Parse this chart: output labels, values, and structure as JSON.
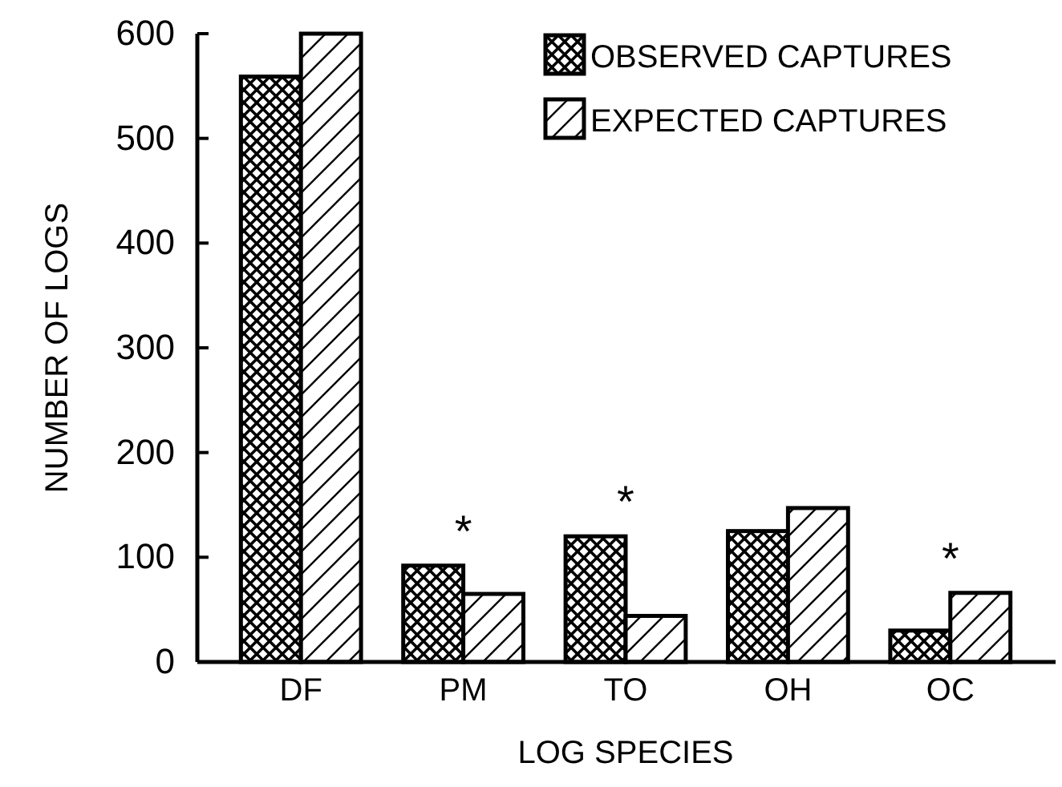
{
  "chart_data": {
    "type": "bar",
    "xlabel": "LOG SPECIES",
    "ylabel": "NUMBER OF LOGS",
    "categories": [
      "DF",
      "PM",
      "TO",
      "OH",
      "OC"
    ],
    "series": [
      {
        "name": "OBSERVED CAPTURES",
        "color": "#000000",
        "values": [
          559,
          92,
          120,
          125,
          30
        ]
      },
      {
        "name": "EXPECTED CAPTURES",
        "color": "#000000",
        "values": [
          600,
          65,
          44,
          147,
          66
        ]
      }
    ],
    "ylim": [
      0,
      600
    ],
    "yticks": [
      0,
      100,
      200,
      300,
      400,
      500,
      600
    ],
    "grid": false,
    "legend": "top right",
    "annotations": [
      {
        "text": "*",
        "x": "PM",
        "y": 92
      },
      {
        "text": "*",
        "x": "TO",
        "y": 120
      },
      {
        "text": "*",
        "x": "OC",
        "y": 66
      }
    ]
  }
}
